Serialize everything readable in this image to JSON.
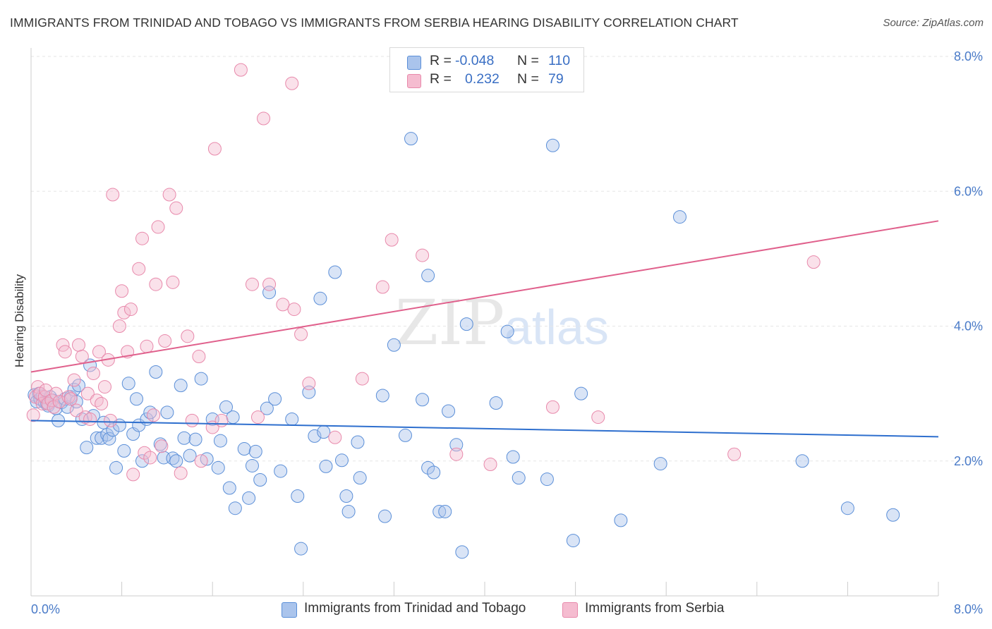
{
  "title": "IMMIGRANTS FROM TRINIDAD AND TOBAGO VS IMMIGRANTS FROM SERBIA HEARING DISABILITY CORRELATION CHART",
  "source": "Source: ZipAtlas.com",
  "watermark": {
    "zip": "ZIP",
    "atlas": "atlas"
  },
  "legend_top": [
    {
      "r_label": "R =",
      "r_value": "-0.048",
      "n_label": "N =",
      "n_value": "110"
    },
    {
      "r_label": "R =",
      "r_value": "0.232",
      "n_label": "N =",
      "n_value": "79"
    }
  ],
  "chart_data": {
    "type": "scatter",
    "title": "IMMIGRANTS FROM TRINIDAD AND TOBAGO VS IMMIGRANTS FROM SERBIA HEARING DISABILITY CORRELATION CHART",
    "xlabel": "",
    "ylabel": "Hearing Disability",
    "xlim": [
      0,
      8
    ],
    "ylim": [
      0,
      8
    ],
    "x_tick_labels": [
      "0.0%",
      "8.0%"
    ],
    "y_ticks": [
      2,
      4,
      6,
      8
    ],
    "y_tick_labels": [
      "2.0%",
      "4.0%",
      "6.0%",
      "8.0%"
    ],
    "grid": true,
    "legend_position": "bottom",
    "colors": {
      "trinidad_fill": "#aac4ec",
      "trinidad_stroke": "#5b8fd8",
      "trinidad_line": "#2e6fce",
      "serbia_fill": "#f5bcd0",
      "serbia_stroke": "#e889ab",
      "serbia_line": "#e0608c"
    },
    "series": [
      {
        "name": "Immigrants from Trinidad and Tobago",
        "r": -0.048,
        "n": 110,
        "trend": [
          [
            0,
            2.6
          ],
          [
            8,
            2.36
          ]
        ],
        "points": [
          [
            0.03,
            2.98
          ],
          [
            0.05,
            2.88
          ],
          [
            0.07,
            3.0
          ],
          [
            0.08,
            2.92
          ],
          [
            0.1,
            2.96
          ],
          [
            0.12,
            2.87
          ],
          [
            0.14,
            2.85
          ],
          [
            0.15,
            2.82
          ],
          [
            0.17,
            2.95
          ],
          [
            0.19,
            2.9
          ],
          [
            0.22,
            2.78
          ],
          [
            0.24,
            2.6
          ],
          [
            0.27,
            2.87
          ],
          [
            0.3,
            2.92
          ],
          [
            0.32,
            2.8
          ],
          [
            0.35,
            2.95
          ],
          [
            0.38,
            3.06
          ],
          [
            0.4,
            2.88
          ],
          [
            0.42,
            3.12
          ],
          [
            0.45,
            2.62
          ],
          [
            0.49,
            2.2
          ],
          [
            0.52,
            3.42
          ],
          [
            0.55,
            2.67
          ],
          [
            0.58,
            2.34
          ],
          [
            0.62,
            2.34
          ],
          [
            0.64,
            2.57
          ],
          [
            0.67,
            2.39
          ],
          [
            0.69,
            2.33
          ],
          [
            0.72,
            2.46
          ],
          [
            0.75,
            1.9
          ],
          [
            0.78,
            2.53
          ],
          [
            0.82,
            2.15
          ],
          [
            0.86,
            3.15
          ],
          [
            0.9,
            2.4
          ],
          [
            0.93,
            2.92
          ],
          [
            0.95,
            2.53
          ],
          [
            0.98,
            2.0
          ],
          [
            1.02,
            2.62
          ],
          [
            1.05,
            2.72
          ],
          [
            1.1,
            3.32
          ],
          [
            1.14,
            2.25
          ],
          [
            1.17,
            2.05
          ],
          [
            1.2,
            2.72
          ],
          [
            1.25,
            2.04
          ],
          [
            1.28,
            2.0
          ],
          [
            1.32,
            3.12
          ],
          [
            1.35,
            2.34
          ],
          [
            1.4,
            2.08
          ],
          [
            1.45,
            2.32
          ],
          [
            1.5,
            3.22
          ],
          [
            1.55,
            2.03
          ],
          [
            1.6,
            2.62
          ],
          [
            1.65,
            1.9
          ],
          [
            1.67,
            2.3
          ],
          [
            1.72,
            2.8
          ],
          [
            1.75,
            1.6
          ],
          [
            1.78,
            2.65
          ],
          [
            1.8,
            1.3
          ],
          [
            1.88,
            2.18
          ],
          [
            1.92,
            1.45
          ],
          [
            1.95,
            1.93
          ],
          [
            1.98,
            2.14
          ],
          [
            2.02,
            1.72
          ],
          [
            2.08,
            2.78
          ],
          [
            2.1,
            4.5
          ],
          [
            2.15,
            2.92
          ],
          [
            2.2,
            1.85
          ],
          [
            2.3,
            2.62
          ],
          [
            2.35,
            1.48
          ],
          [
            2.38,
            0.7
          ],
          [
            2.45,
            3.02
          ],
          [
            2.5,
            2.37
          ],
          [
            2.55,
            4.41
          ],
          [
            2.58,
            2.43
          ],
          [
            2.6,
            1.92
          ],
          [
            2.68,
            4.8
          ],
          [
            2.74,
            2.01
          ],
          [
            2.78,
            1.48
          ],
          [
            2.8,
            1.25
          ],
          [
            2.88,
            2.28
          ],
          [
            2.9,
            1.75
          ],
          [
            3.1,
            2.97
          ],
          [
            3.12,
            1.18
          ],
          [
            3.2,
            3.72
          ],
          [
            3.3,
            2.38
          ],
          [
            3.35,
            6.78
          ],
          [
            3.45,
            2.91
          ],
          [
            3.5,
            1.9
          ],
          [
            3.5,
            4.75
          ],
          [
            3.55,
            1.83
          ],
          [
            3.6,
            1.25
          ],
          [
            3.65,
            1.25
          ],
          [
            3.68,
            2.74
          ],
          [
            3.75,
            2.24
          ],
          [
            3.8,
            0.65
          ],
          [
            3.84,
            4.03
          ],
          [
            4.1,
            2.86
          ],
          [
            4.2,
            3.92
          ],
          [
            4.25,
            2.06
          ],
          [
            4.3,
            1.75
          ],
          [
            4.55,
            1.73
          ],
          [
            4.6,
            6.68
          ],
          [
            4.78,
            0.82
          ],
          [
            4.85,
            3.0
          ],
          [
            5.2,
            1.12
          ],
          [
            5.55,
            1.96
          ],
          [
            5.72,
            5.62
          ],
          [
            6.8,
            2.0
          ],
          [
            7.2,
            1.3
          ],
          [
            7.6,
            1.2
          ]
        ]
      },
      {
        "name": "Immigrants from Serbia",
        "r": 0.232,
        "n": 79,
        "trend": [
          [
            0,
            3.32
          ],
          [
            8,
            5.56
          ]
        ],
        "points": [
          [
            0.02,
            2.68
          ],
          [
            0.04,
            2.95
          ],
          [
            0.06,
            3.1
          ],
          [
            0.08,
            3.0
          ],
          [
            0.1,
            2.85
          ],
          [
            0.12,
            2.95
          ],
          [
            0.13,
            3.05
          ],
          [
            0.15,
            2.85
          ],
          [
            0.18,
            2.9
          ],
          [
            0.2,
            2.8
          ],
          [
            0.22,
            3.0
          ],
          [
            0.25,
            2.88
          ],
          [
            0.28,
            3.72
          ],
          [
            0.3,
            3.62
          ],
          [
            0.33,
            2.95
          ],
          [
            0.35,
            2.92
          ],
          [
            0.38,
            3.2
          ],
          [
            0.4,
            2.75
          ],
          [
            0.42,
            3.72
          ],
          [
            0.45,
            3.55
          ],
          [
            0.48,
            2.65
          ],
          [
            0.5,
            3.0
          ],
          [
            0.52,
            2.62
          ],
          [
            0.55,
            3.3
          ],
          [
            0.58,
            2.9
          ],
          [
            0.6,
            3.62
          ],
          [
            0.62,
            2.85
          ],
          [
            0.65,
            3.1
          ],
          [
            0.68,
            3.5
          ],
          [
            0.7,
            2.6
          ],
          [
            0.72,
            5.95
          ],
          [
            0.78,
            4.0
          ],
          [
            0.8,
            4.52
          ],
          [
            0.82,
            4.2
          ],
          [
            0.85,
            3.62
          ],
          [
            0.88,
            4.25
          ],
          [
            0.9,
            1.8
          ],
          [
            0.95,
            4.85
          ],
          [
            0.98,
            5.3
          ],
          [
            1.0,
            2.12
          ],
          [
            1.02,
            3.7
          ],
          [
            1.05,
            2.05
          ],
          [
            1.08,
            2.68
          ],
          [
            1.1,
            4.62
          ],
          [
            1.12,
            5.47
          ],
          [
            1.15,
            2.22
          ],
          [
            1.18,
            3.78
          ],
          [
            1.22,
            5.95
          ],
          [
            1.25,
            4.65
          ],
          [
            1.28,
            5.75
          ],
          [
            1.32,
            1.82
          ],
          [
            1.38,
            3.85
          ],
          [
            1.42,
            2.6
          ],
          [
            1.48,
            3.55
          ],
          [
            1.6,
            2.5
          ],
          [
            1.62,
            6.63
          ],
          [
            1.68,
            2.6
          ],
          [
            1.95,
            4.62
          ],
          [
            2.0,
            2.65
          ],
          [
            2.05,
            7.08
          ],
          [
            2.1,
            4.62
          ],
          [
            2.22,
            4.32
          ],
          [
            2.32,
            4.25
          ],
          [
            2.38,
            3.88
          ],
          [
            2.45,
            3.15
          ],
          [
            2.68,
            2.35
          ],
          [
            2.92,
            3.22
          ],
          [
            3.1,
            4.58
          ],
          [
            3.18,
            5.28
          ],
          [
            3.45,
            5.05
          ],
          [
            3.75,
            2.1
          ],
          [
            4.05,
            1.95
          ],
          [
            4.6,
            2.8
          ],
          [
            5.0,
            2.65
          ],
          [
            6.2,
            2.1
          ],
          [
            6.9,
            4.95
          ],
          [
            1.85,
            7.8
          ],
          [
            2.3,
            7.6
          ],
          [
            1.5,
            2.0
          ]
        ]
      }
    ]
  }
}
